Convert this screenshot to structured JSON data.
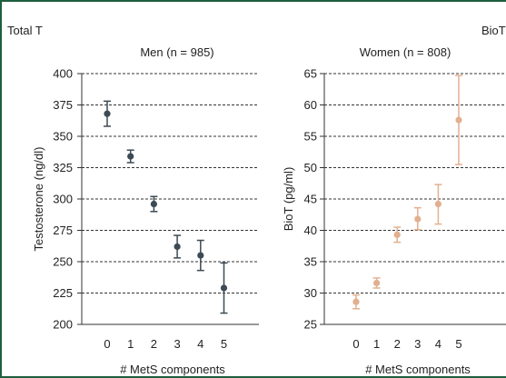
{
  "panel_labels": {
    "left": "Total T",
    "right": "BioT"
  },
  "colors": {
    "frame": "#1e5e3f",
    "men": "#3d4a54",
    "women": "#e2b08f",
    "grid": "#333333"
  },
  "chart_data": [
    {
      "type": "scatter",
      "title": "Men (n = 985)",
      "xlabel": "# MetS components",
      "ylabel": "Testosterone (ng/dl)",
      "x": [
        0,
        1,
        2,
        3,
        4,
        5
      ],
      "ylim": [
        200,
        400
      ],
      "yticks": [
        200,
        225,
        250,
        275,
        300,
        325,
        350,
        375,
        400
      ],
      "grid": "horizontal dashed",
      "series": [
        {
          "values": [
            368,
            334,
            296,
            262,
            255,
            229
          ],
          "error_low": [
            358,
            329,
            290,
            253,
            243,
            209
          ],
          "error_high": [
            378,
            339,
            302,
            271,
            267,
            249
          ]
        }
      ]
    },
    {
      "type": "scatter",
      "title": "Women (n = 808)",
      "xlabel": "# MetS components",
      "ylabel": "BioT (pg/ml)",
      "x": [
        0,
        1,
        2,
        3,
        4,
        5
      ],
      "ylim": [
        25,
        65
      ],
      "yticks": [
        25,
        30,
        35,
        40,
        45,
        50,
        55,
        60,
        65
      ],
      "grid": "horizontal dashed",
      "series": [
        {
          "values": [
            28.6,
            31.6,
            39.3,
            41.8,
            44.2,
            57.6
          ],
          "error_low": [
            27.5,
            30.8,
            38.1,
            40.1,
            41.0,
            50.5
          ],
          "error_high": [
            29.7,
            32.4,
            40.5,
            43.6,
            47.3,
            64.7
          ]
        }
      ]
    }
  ]
}
